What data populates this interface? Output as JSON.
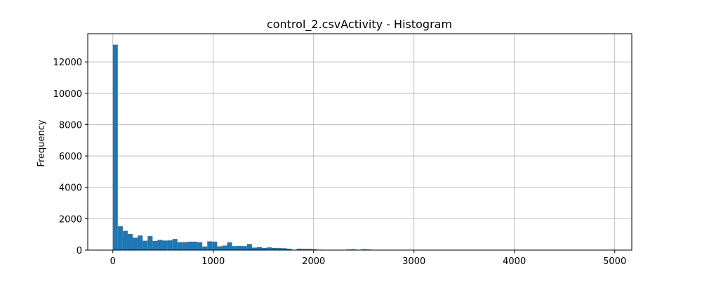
{
  "chart_data": {
    "type": "bar",
    "title": "control_2.csvActivity - Histogram",
    "xlabel": "",
    "ylabel": "Frequency",
    "xlim": [
      -250,
      5170
    ],
    "ylim": [
      0,
      13800
    ],
    "xticks": [
      0,
      1000,
      2000,
      3000,
      4000,
      5000
    ],
    "yticks": [
      0,
      2000,
      4000,
      6000,
      8000,
      10000,
      12000
    ],
    "grid": true,
    "bar_color": "#1f77b4",
    "bins": {
      "start": 0,
      "width": 49.5,
      "counts": [
        13100,
        1520,
        1230,
        1030,
        790,
        930,
        600,
        890,
        590,
        650,
        610,
        620,
        710,
        500,
        510,
        540,
        540,
        500,
        230,
        560,
        540,
        240,
        290,
        490,
        260,
        270,
        260,
        390,
        160,
        190,
        140,
        170,
        140,
        130,
        120,
        90,
        25,
        90,
        80,
        80,
        60,
        30,
        20,
        20,
        10,
        20,
        10,
        40,
        50,
        10,
        50,
        40,
        10,
        0,
        10,
        10,
        10,
        10,
        0,
        10,
        0,
        0,
        0,
        0,
        0,
        0,
        0,
        0,
        0,
        0,
        0,
        0,
        0,
        0,
        0,
        0,
        0,
        0,
        0,
        0,
        0,
        0,
        0,
        0,
        0,
        0,
        0,
        0,
        0,
        0,
        0,
        0,
        0,
        0,
        0,
        0,
        0,
        0,
        0,
        10
      ]
    }
  }
}
